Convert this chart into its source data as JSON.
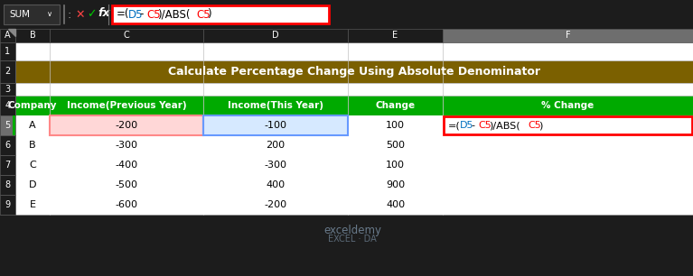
{
  "title": "Calculate Percentage Change Using Absolute Denominator",
  "title_bg": "#7B6000",
  "title_color": "#FFFFFF",
  "formula_bar_bg": "#FFFFFF",
  "formula_border": "#FF0000",
  "toolbar_bg": "#1C1C1C",
  "col_header_bg": "#1C1C1C",
  "col_header_selected_bg": "#6E6E6E",
  "row_header_bg": "#1C1C1C",
  "row_header_selected_bg": "#6E6E6E",
  "table_headers": [
    "Company",
    "Income(Previous Year)",
    "Income(This Year)",
    "Change",
    "% Change"
  ],
  "header_bg": "#00AA00",
  "header_color": "#FFFFFF",
  "companies": [
    "A",
    "B",
    "C",
    "D",
    "E"
  ],
  "prev_income": [
    -200,
    -300,
    -400,
    -500,
    -600
  ],
  "this_income": [
    -100,
    200,
    -300,
    400,
    -200
  ],
  "change": [
    100,
    500,
    100,
    900,
    400
  ],
  "cell_c5_bg": "#FFD7D7",
  "cell_d5_bg": "#D6E9FF",
  "cell_f5_border": "#FF0000",
  "formula_color_d5": "#0070C0",
  "formula_color_c5": "#FF0000",
  "formula_color_black": "#000000",
  "grid_color": "#555555",
  "cell_grid_color": "#C0C0C0",
  "bg_color": "#1C1C1C",
  "cell_bg": "#FFFFFF",
  "watermark_color": "#9BB8D4",
  "col_header_text": "#FFFFFF",
  "row_header_text": "#FFFFFF",
  "row5_header_selected_color": "#FFFFFF",
  "col_F_header_bg": "#6E6E6E"
}
